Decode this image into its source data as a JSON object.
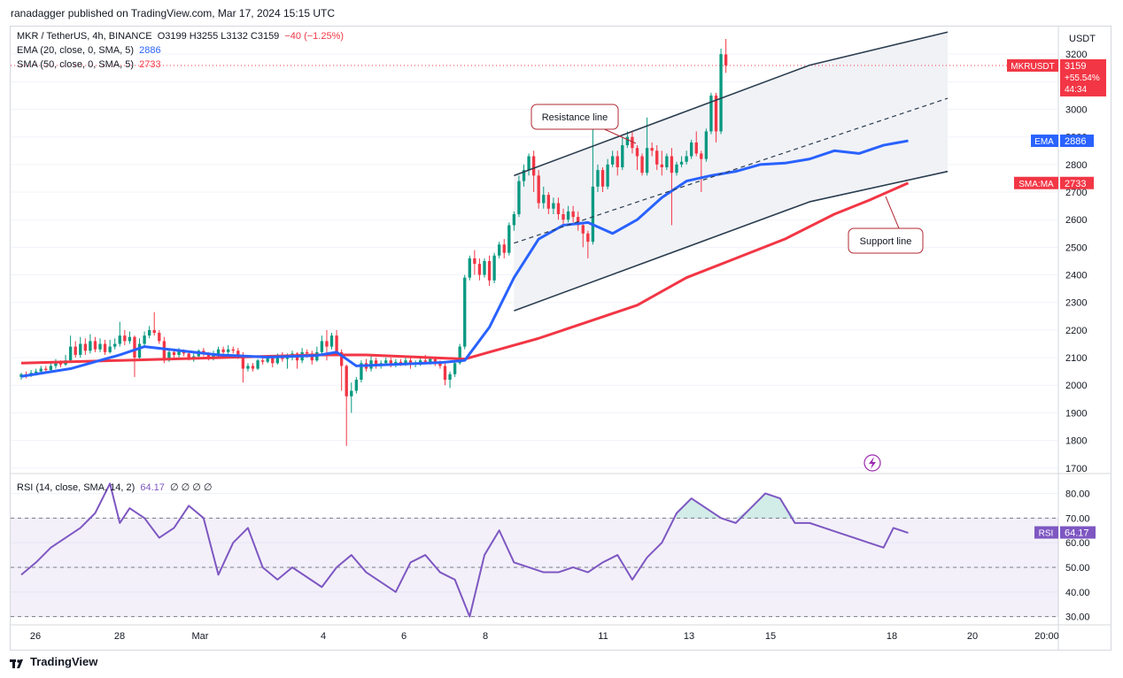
{
  "header": {
    "publisher": "ranadagger published on TradingView.com, Mar 17, 2024 15:15 UTC"
  },
  "legend": {
    "symbol": "MKR / TetherUS, 4h, BINANCE",
    "ohlc": [
      {
        "k": "O",
        "v": "3199"
      },
      {
        "k": "H",
        "v": "3255"
      },
      {
        "k": "L",
        "v": "3132"
      },
      {
        "k": "C",
        "v": "3159"
      }
    ],
    "change": "−40 (−1.25%)",
    "ema_label": "EMA (20, close, 0, SMA, 5)",
    "ema_value": "2886",
    "sma_label": "SMA (50, close, 0, SMA, 5)",
    "sma_value": "2733",
    "rsi_label": "RSI (14, close, SMA, 14, 2)",
    "rsi_value": "64.17",
    "rsi_extra": "∅ ∅ ∅ ∅"
  },
  "price_axis": {
    "currency": "USDT",
    "ticks": [
      "3200",
      "3100",
      "3000",
      "2900",
      "2800",
      "2700",
      "2600",
      "2500",
      "2400",
      "2300",
      "2200",
      "2100",
      "2000",
      "1900",
      "1800",
      "1700"
    ],
    "tag_symbol": "MKRUSDT",
    "tag_price": "3159",
    "tag_change": "+55.54%",
    "tag_timer": "44:34",
    "ema_tag_name": "EMA",
    "ema_tag_value": "2886",
    "sma_tag_name": "SMA:MA",
    "sma_tag_value": "2733"
  },
  "rsi_axis": {
    "ticks": [
      "80.00",
      "70.00",
      "60.00",
      "50.00",
      "40.00",
      "30.00"
    ],
    "tag_name": "RSI",
    "tag_value": "64.17"
  },
  "time_axis": {
    "labels": [
      "26",
      "28",
      "Mar",
      "4",
      "6",
      "8",
      "11",
      "13",
      "15",
      "18",
      "20",
      "20:00"
    ]
  },
  "annotations": {
    "resistance": "Resistance line",
    "support": "Support line"
  },
  "footer": {
    "brand": "TradingView"
  },
  "colors": {
    "up": "#089981",
    "down": "#f23645",
    "ema": "#2962ff",
    "sma": "#f23645",
    "rsi": "#7e57c2",
    "channel": "#2a3d4f",
    "callout": "#b22833"
  },
  "chart_data": {
    "type": "candlestick",
    "title": "MKR / TetherUS, 4h, BINANCE",
    "ylabel": "USDT",
    "ylim": [
      1680,
      3300
    ],
    "rsi_ylim": [
      27,
      87
    ],
    "x_range_bars": [
      0,
      188
    ],
    "candles": [
      [
        2030,
        2040,
        2020,
        2045
      ],
      [
        2040,
        2035,
        2025,
        2050
      ],
      [
        2035,
        2045,
        2030,
        2055
      ],
      [
        2045,
        2050,
        2035,
        2060
      ],
      [
        2050,
        2060,
        2045,
        2070
      ],
      [
        2060,
        2055,
        2045,
        2070
      ],
      [
        2055,
        2070,
        2050,
        2085
      ],
      [
        2070,
        2080,
        2060,
        2095
      ],
      [
        2080,
        2075,
        2065,
        2090
      ],
      [
        2075,
        2090,
        2070,
        2110
      ],
      [
        2090,
        2140,
        2085,
        2180
      ],
      [
        2140,
        2110,
        2100,
        2160
      ],
      [
        2110,
        2150,
        2100,
        2175
      ],
      [
        2150,
        2125,
        2110,
        2170
      ],
      [
        2125,
        2160,
        2115,
        2185
      ],
      [
        2160,
        2130,
        2120,
        2175
      ],
      [
        2130,
        2150,
        2120,
        2170
      ],
      [
        2150,
        2120,
        2110,
        2165
      ],
      [
        2120,
        2140,
        2115,
        2165
      ],
      [
        2140,
        2150,
        2130,
        2170
      ],
      [
        2150,
        2180,
        2140,
        2230
      ],
      [
        2180,
        2160,
        2145,
        2200
      ],
      [
        2160,
        2175,
        2150,
        2195
      ],
      [
        2175,
        2100,
        2030,
        2180
      ],
      [
        2100,
        2150,
        2095,
        2170
      ],
      [
        2150,
        2180,
        2140,
        2195
      ],
      [
        2180,
        2200,
        2170,
        2215
      ],
      [
        2200,
        2190,
        2180,
        2265
      ],
      [
        2190,
        2160,
        2150,
        2200
      ],
      [
        2160,
        2090,
        2080,
        2175
      ],
      [
        2090,
        2120,
        2085,
        2130
      ],
      [
        2120,
        2110,
        2100,
        2130
      ],
      [
        2110,
        2125,
        2100,
        2135
      ],
      [
        2125,
        2115,
        2105,
        2130
      ],
      [
        2115,
        2100,
        2090,
        2120
      ],
      [
        2100,
        2105,
        2085,
        2115
      ],
      [
        2105,
        2125,
        2095,
        2130
      ],
      [
        2125,
        2115,
        2105,
        2135
      ],
      [
        2115,
        2100,
        2090,
        2120
      ],
      [
        2100,
        2110,
        2090,
        2125
      ],
      [
        2110,
        2130,
        2100,
        2140
      ],
      [
        2130,
        2120,
        2110,
        2140
      ],
      [
        2120,
        2130,
        2110,
        2145
      ],
      [
        2130,
        2125,
        2115,
        2140
      ],
      [
        2125,
        2110,
        2095,
        2135
      ],
      [
        2110,
        2060,
        2010,
        2120
      ],
      [
        2060,
        2070,
        2050,
        2080
      ],
      [
        2070,
        2060,
        2050,
        2080
      ],
      [
        2060,
        2090,
        2055,
        2095
      ],
      [
        2090,
        2085,
        2075,
        2100
      ],
      [
        2085,
        2100,
        2080,
        2110
      ],
      [
        2100,
        2080,
        2065,
        2110
      ],
      [
        2080,
        2110,
        2075,
        2115
      ],
      [
        2110,
        2095,
        2085,
        2120
      ],
      [
        2095,
        2100,
        2060,
        2115
      ],
      [
        2100,
        2115,
        2090,
        2125
      ],
      [
        2115,
        2090,
        2060,
        2120
      ],
      [
        2090,
        2120,
        2080,
        2135
      ],
      [
        2120,
        2115,
        2100,
        2130
      ],
      [
        2115,
        2090,
        2075,
        2125
      ],
      [
        2090,
        2120,
        2085,
        2140
      ],
      [
        2120,
        2160,
        2110,
        2180
      ],
      [
        2160,
        2140,
        2090,
        2200
      ],
      [
        2140,
        2180,
        2130,
        2190
      ],
      [
        2180,
        2120,
        2110,
        2200
      ],
      [
        2120,
        2070,
        1980,
        2130
      ],
      [
        2070,
        1960,
        1780,
        2075
      ],
      [
        1960,
        1980,
        1900,
        2010
      ],
      [
        1980,
        2020,
        1970,
        2030
      ],
      [
        2020,
        2080,
        2010,
        2090
      ],
      [
        2080,
        2060,
        2050,
        2095
      ],
      [
        2060,
        2090,
        2050,
        2110
      ],
      [
        2090,
        2070,
        2060,
        2100
      ],
      [
        2070,
        2080,
        2060,
        2090
      ],
      [
        2080,
        2090,
        2070,
        2100
      ],
      [
        2090,
        2075,
        2065,
        2100
      ],
      [
        2075,
        2085,
        2065,
        2095
      ],
      [
        2085,
        2080,
        2070,
        2095
      ],
      [
        2080,
        2090,
        2070,
        2100
      ],
      [
        2090,
        2075,
        2060,
        2100
      ],
      [
        2075,
        2080,
        2065,
        2090
      ],
      [
        2080,
        2090,
        2070,
        2100
      ],
      [
        2090,
        2085,
        2075,
        2110
      ],
      [
        2085,
        2095,
        2075,
        2105
      ],
      [
        2095,
        2080,
        2070,
        2100
      ],
      [
        2080,
        2070,
        2060,
        2090
      ],
      [
        2070,
        2020,
        2000,
        2080
      ],
      [
        2020,
        2040,
        1990,
        2050
      ],
      [
        2040,
        2080,
        2030,
        2090
      ],
      [
        2080,
        2140,
        2075,
        2150
      ],
      [
        2140,
        2390,
        2130,
        2400
      ],
      [
        2390,
        2460,
        2380,
        2470
      ],
      [
        2460,
        2440,
        2400,
        2490
      ],
      [
        2440,
        2400,
        2380,
        2460
      ],
      [
        2400,
        2450,
        2390,
        2460
      ],
      [
        2450,
        2380,
        2360,
        2470
      ],
      [
        2380,
        2470,
        2370,
        2480
      ],
      [
        2470,
        2510,
        2460,
        2520
      ],
      [
        2510,
        2480,
        2460,
        2530
      ],
      [
        2480,
        2580,
        2470,
        2590
      ],
      [
        2580,
        2620,
        2560,
        2630
      ],
      [
        2620,
        2740,
        2610,
        2760
      ],
      [
        2740,
        2780,
        2720,
        2800
      ],
      [
        2780,
        2830,
        2760,
        2840
      ],
      [
        2830,
        2760,
        2700,
        2850
      ],
      [
        2760,
        2660,
        2640,
        2780
      ],
      [
        2660,
        2690,
        2640,
        2720
      ],
      [
        2690,
        2640,
        2620,
        2700
      ],
      [
        2640,
        2660,
        2620,
        2680
      ],
      [
        2660,
        2620,
        2600,
        2680
      ],
      [
        2620,
        2600,
        2580,
        2640
      ],
      [
        2600,
        2630,
        2590,
        2650
      ],
      [
        2630,
        2610,
        2590,
        2650
      ],
      [
        2610,
        2580,
        2560,
        2630
      ],
      [
        2580,
        2550,
        2500,
        2590
      ],
      [
        2550,
        2520,
        2460,
        2560
      ],
      [
        2520,
        2720,
        2510,
        2950
      ],
      [
        2720,
        2780,
        2700,
        2800
      ],
      [
        2780,
        2720,
        2700,
        2790
      ],
      [
        2720,
        2800,
        2710,
        2820
      ],
      [
        2800,
        2830,
        2790,
        2850
      ],
      [
        2830,
        2790,
        2760,
        2850
      ],
      [
        2790,
        2870,
        2780,
        2900
      ],
      [
        2870,
        2900,
        2860,
        2920
      ],
      [
        2900,
        2860,
        2840,
        2920
      ],
      [
        2860,
        2830,
        2780,
        2870
      ],
      [
        2830,
        2770,
        2760,
        2840
      ],
      [
        2770,
        2860,
        2760,
        2970
      ],
      [
        2860,
        2850,
        2830,
        2880
      ],
      [
        2850,
        2800,
        2780,
        2870
      ],
      [
        2800,
        2790,
        2760,
        2850
      ],
      [
        2790,
        2830,
        2780,
        2840
      ],
      [
        2830,
        2770,
        2580,
        2860
      ],
      [
        2770,
        2800,
        2760,
        2810
      ],
      [
        2800,
        2810,
        2790,
        2830
      ],
      [
        2810,
        2830,
        2800,
        2850
      ],
      [
        2830,
        2880,
        2820,
        2890
      ],
      [
        2880,
        2840,
        2830,
        2920
      ],
      [
        2840,
        2820,
        2700,
        2850
      ],
      [
        2820,
        2920,
        2810,
        2930
      ],
      [
        2920,
        3050,
        2910,
        3060
      ],
      [
        3050,
        2920,
        2880,
        3060
      ],
      [
        2920,
        3200,
        2910,
        3220
      ],
      [
        3199,
        3159,
        3132,
        3255
      ]
    ],
    "ema": [
      [
        0,
        2032
      ],
      [
        10,
        2060
      ],
      [
        20,
        2110
      ],
      [
        25,
        2140
      ],
      [
        30,
        2130
      ],
      [
        40,
        2110
      ],
      [
        50,
        2102
      ],
      [
        60,
        2108
      ],
      [
        64,
        2120
      ],
      [
        68,
        2070
      ],
      [
        75,
        2075
      ],
      [
        85,
        2082
      ],
      [
        90,
        2090
      ],
      [
        95,
        2210
      ],
      [
        100,
        2390
      ],
      [
        105,
        2530
      ],
      [
        110,
        2580
      ],
      [
        115,
        2590
      ],
      [
        120,
        2550
      ],
      [
        125,
        2600
      ],
      [
        130,
        2680
      ],
      [
        135,
        2740
      ],
      [
        140,
        2760
      ],
      [
        145,
        2775
      ],
      [
        150,
        2800
      ],
      [
        155,
        2805
      ],
      [
        160,
        2820
      ],
      [
        165,
        2850
      ],
      [
        170,
        2840
      ],
      [
        175,
        2870
      ],
      [
        180,
        2886
      ]
    ],
    "sma": [
      [
        0,
        2080
      ],
      [
        20,
        2090
      ],
      [
        40,
        2100
      ],
      [
        60,
        2110
      ],
      [
        70,
        2110
      ],
      [
        90,
        2095
      ],
      [
        95,
        2120
      ],
      [
        105,
        2170
      ],
      [
        115,
        2230
      ],
      [
        125,
        2290
      ],
      [
        135,
        2390
      ],
      [
        145,
        2460
      ],
      [
        155,
        2530
      ],
      [
        165,
        2620
      ],
      [
        172,
        2670
      ],
      [
        180,
        2733
      ]
    ],
    "rsi": [
      [
        0,
        47
      ],
      [
        3,
        52
      ],
      [
        6,
        58
      ],
      [
        9,
        62
      ],
      [
        12,
        66
      ],
      [
        15,
        72
      ],
      [
        18,
        84
      ],
      [
        20,
        68
      ],
      [
        22,
        74
      ],
      [
        25,
        70
      ],
      [
        28,
        62
      ],
      [
        31,
        66
      ],
      [
        34,
        75
      ],
      [
        37,
        70
      ],
      [
        40,
        47
      ],
      [
        43,
        60
      ],
      [
        46,
        66
      ],
      [
        49,
        50
      ],
      [
        52,
        45
      ],
      [
        55,
        50
      ],
      [
        58,
        46
      ],
      [
        61,
        42
      ],
      [
        64,
        50
      ],
      [
        67,
        55
      ],
      [
        70,
        48
      ],
      [
        73,
        44
      ],
      [
        76,
        40
      ],
      [
        79,
        52
      ],
      [
        82,
        55
      ],
      [
        85,
        48
      ],
      [
        88,
        45
      ],
      [
        91,
        30
      ],
      [
        94,
        55
      ],
      [
        97,
        65
      ],
      [
        100,
        52
      ],
      [
        103,
        50
      ],
      [
        106,
        48
      ],
      [
        109,
        48
      ],
      [
        112,
        50
      ],
      [
        115,
        48
      ],
      [
        118,
        52
      ],
      [
        121,
        55
      ],
      [
        124,
        45
      ],
      [
        127,
        54
      ],
      [
        130,
        60
      ],
      [
        133,
        72
      ],
      [
        136,
        78
      ],
      [
        139,
        74
      ],
      [
        142,
        70
      ],
      [
        145,
        68
      ],
      [
        148,
        74
      ],
      [
        151,
        80
      ],
      [
        154,
        78
      ],
      [
        157,
        68
      ],
      [
        160,
        68
      ],
      [
        163,
        66
      ],
      [
        166,
        64
      ],
      [
        169,
        62
      ],
      [
        172,
        60
      ],
      [
        175,
        58
      ],
      [
        177,
        66
      ],
      [
        180,
        64
      ]
    ],
    "resistance_line": [
      [
        100,
        2760
      ],
      [
        160,
        3160
      ],
      [
        188,
        3280
      ]
    ],
    "support_line": [
      [
        100,
        2270
      ],
      [
        160,
        2665
      ],
      [
        188,
        2775
      ]
    ],
    "midline": [
      [
        100,
        2515
      ],
      [
        188,
        3040
      ]
    ],
    "rsi_bands": [
      30,
      50,
      70
    ]
  }
}
